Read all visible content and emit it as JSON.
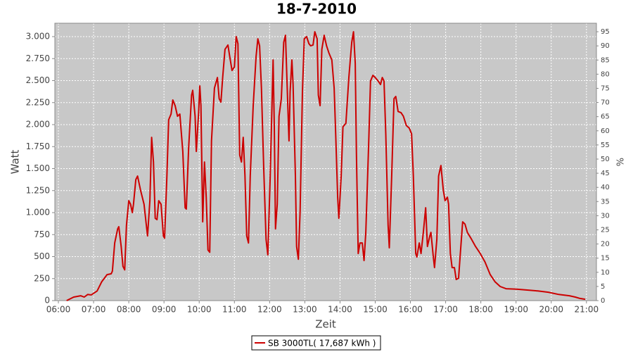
{
  "chart_data": {
    "type": "line",
    "title": "18-7-2010",
    "xlabel": "Zeit",
    "ylabel": "Watt",
    "y2label": "%",
    "grid": true,
    "legend_position": "bottom",
    "xlim": [
      "05:54",
      "21:17"
    ],
    "xticks": [
      "06:00",
      "07:00",
      "08:00",
      "09:00",
      "10:00",
      "11:00",
      "12:00",
      "13:00",
      "14:00",
      "15:00",
      "16:00",
      "17:00",
      "18:00",
      "19:00",
      "20:00",
      "21:00"
    ],
    "ylim": [
      0,
      3152
    ],
    "yticks": [
      0,
      250,
      500,
      750,
      {
        "value": 1000,
        "label": "1.000"
      },
      {
        "value": 1250,
        "label": "1.250"
      },
      {
        "value": 1500,
        "label": "1.500"
      },
      {
        "value": 1750,
        "label": "1.750"
      },
      {
        "value": 2000,
        "label": "2.000"
      },
      {
        "value": 2250,
        "label": "2.250"
      },
      {
        "value": 2500,
        "label": "2.500"
      },
      {
        "value": 2750,
        "label": "2.750"
      },
      {
        "value": 3000,
        "label": "3.000"
      }
    ],
    "y2lim": [
      0,
      98
    ],
    "y2ticks": [
      0,
      5,
      10,
      15,
      20,
      25,
      30,
      35,
      40,
      45,
      50,
      55,
      60,
      65,
      70,
      75,
      80,
      85,
      90,
      95
    ],
    "x": [
      "06:14",
      "06:26",
      "06:38",
      "06:44",
      "06:50",
      "06:56",
      "07:06",
      "07:14",
      "07:23",
      "07:30",
      "07:32",
      "07:36",
      "07:41",
      "07:43",
      "07:47",
      "07:50",
      "07:53",
      "07:56",
      "08:00",
      "08:03",
      "08:06",
      "08:08",
      "08:12",
      "08:15",
      "08:20",
      "08:26",
      "08:30",
      "08:32",
      "08:36",
      "08:39",
      "08:42",
      "08:45",
      "08:48",
      "08:51",
      "08:55",
      "08:59",
      "09:01",
      "09:05",
      "09:08",
      "09:12",
      "09:15",
      "09:19",
      "09:23",
      "09:27",
      "09:32",
      "09:36",
      "09:38",
      "09:42",
      "09:47",
      "09:49",
      "09:53",
      "09:55",
      "09:59",
      "10:01",
      "10:03",
      "10:06",
      "10:09",
      "10:12",
      "10:15",
      "10:18",
      "10:21",
      "10:26",
      "10:31",
      "10:34",
      "10:37",
      "10:40",
      "10:44",
      "10:49",
      "10:52",
      "10:56",
      "11:00",
      "11:03",
      "11:06",
      "11:09",
      "11:12",
      "11:15",
      "11:18",
      "11:21",
      "11:24",
      "11:27",
      "11:32",
      "11:37",
      "11:40",
      "11:43",
      "11:46",
      "11:50",
      "11:54",
      "11:57",
      "12:01",
      "12:06",
      "12:08",
      "12:10",
      "12:13",
      "12:16",
      "12:20",
      "12:24",
      "12:27",
      "12:31",
      "12:33",
      "12:35",
      "12:38",
      "12:40",
      "12:44",
      "12:46",
      "12:49",
      "12:52",
      "12:56",
      "12:59",
      "13:03",
      "13:07",
      "13:10",
      "13:14",
      "13:17",
      "13:21",
      "13:23",
      "13:26",
      "13:29",
      "13:33",
      "13:37",
      "13:41",
      "13:46",
      "13:50",
      "13:53",
      "13:56",
      "13:58",
      "14:02",
      "14:05",
      "14:10",
      "14:15",
      "14:20",
      "14:23",
      "14:26",
      "14:28",
      "14:31",
      "14:34",
      "14:38",
      "14:41",
      "14:44",
      "14:49",
      "14:52",
      "14:56",
      "15:00",
      "15:05",
      "15:09",
      "15:12",
      "15:15",
      "15:18",
      "15:22",
      "15:24",
      "15:28",
      "15:32",
      "15:35",
      "15:39",
      "15:44",
      "15:48",
      "15:53",
      "15:58",
      "16:02",
      "16:05",
      "16:09",
      "16:11",
      "16:15",
      "16:18",
      "16:22",
      "16:26",
      "16:29",
      "16:33",
      "16:35",
      "16:39",
      "16:41",
      "16:45",
      "16:48",
      "16:52",
      "16:56",
      "16:59",
      "17:03",
      "17:05",
      "17:08",
      "17:11",
      "17:15",
      "17:18",
      "17:22",
      "17:25",
      "17:29",
      "17:33",
      "17:37",
      "17:43",
      "17:51",
      "17:59",
      "18:07",
      "18:16",
      "18:24",
      "18:33",
      "18:43",
      "19:01",
      "19:19",
      "19:37",
      "19:55",
      "20:13",
      "20:31",
      "20:41",
      "20:49",
      "20:58"
    ],
    "series": [
      {
        "name": "SB 3000TL( 17,687 kWh )",
        "color": "#cc0000",
        "values": [
          0,
          40,
          55,
          40,
          70,
          65,
          110,
          215,
          295,
          305,
          335,
          655,
          815,
          840,
          615,
          390,
          350,
          855,
          1135,
          1095,
          1000,
          1095,
          1375,
          1415,
          1255,
          1095,
          855,
          735,
          1135,
          1855,
          1575,
          935,
          920,
          1135,
          1095,
          735,
          710,
          1415,
          2055,
          2120,
          2280,
          2215,
          2095,
          2120,
          1695,
          1055,
          1040,
          1735,
          2335,
          2390,
          2095,
          1695,
          2135,
          2440,
          2215,
          895,
          1575,
          1175,
          575,
          550,
          1815,
          2415,
          2535,
          2295,
          2255,
          2535,
          2855,
          2905,
          2775,
          2615,
          2655,
          3000,
          2920,
          1655,
          1575,
          1855,
          1415,
          735,
          655,
          1415,
          2215,
          2775,
          2975,
          2895,
          2415,
          1495,
          695,
          520,
          1415,
          2735,
          1975,
          815,
          1095,
          2095,
          2295,
          2935,
          3015,
          2215,
          1815,
          2375,
          2735,
          2455,
          1415,
          615,
          470,
          1015,
          2375,
          2975,
          3000,
          2920,
          2895,
          2905,
          3055,
          2975,
          2335,
          2215,
          2855,
          3015,
          2895,
          2815,
          2735,
          2415,
          1815,
          1175,
          935,
          1415,
          1975,
          2015,
          2535,
          2935,
          3055,
          2695,
          1655,
          535,
          655,
          655,
          455,
          775,
          1815,
          2495,
          2560,
          2535,
          2495,
          2455,
          2535,
          2495,
          1895,
          855,
          600,
          1415,
          2295,
          2320,
          2150,
          2135,
          2095,
          1990,
          1960,
          1895,
          1415,
          535,
          495,
          655,
          535,
          775,
          1055,
          615,
          735,
          775,
          495,
          375,
          695,
          1415,
          1535,
          1255,
          1135,
          1175,
          1095,
          535,
          375,
          375,
          240,
          255,
          535,
          895,
          870,
          775,
          710,
          615,
          535,
          440,
          295,
          215,
          160,
          135,
          130,
          120,
          110,
          95,
          70,
          55,
          40,
          25,
          15
        ]
      }
    ]
  }
}
